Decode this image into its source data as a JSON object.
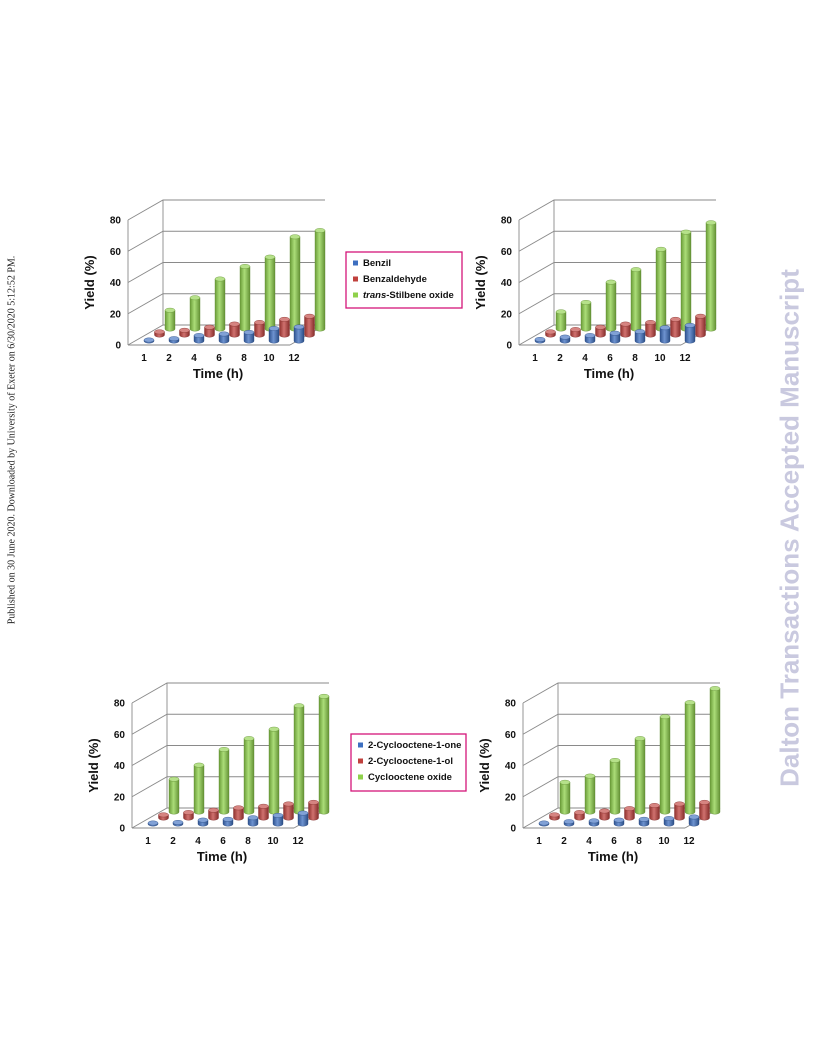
{
  "side_text": {
    "published": "Published on 30 June 2020. Downloaded by University of Exeter on 6/30/2020 5:12:52 PM.",
    "watermark": "Dalton Transactions Accepted Manuscript"
  },
  "colors": {
    "series_1": "#3d6fc0",
    "series_2": "#c0413d",
    "series_3": "#8fd14b",
    "legend_border": "#d4157a",
    "grid": "#8a8a8a"
  },
  "chart_data": [
    {
      "type": "bar",
      "style": "3d-clustered",
      "categories": [
        "1",
        "2",
        "4",
        "6",
        "8",
        "10",
        "12"
      ],
      "xlabel": "Time (h)",
      "ylabel": "Yield (%)",
      "ylim": [
        0,
        80
      ],
      "yticks": [
        "0",
        "20",
        "40",
        "60",
        "80"
      ],
      "grid": true,
      "legend": "right",
      "legend_italic_prefix": [
        "",
        "",
        "trans"
      ],
      "series": [
        {
          "name": "Benzil",
          "legend_rest": "Benzil",
          "values": [
            0.5,
            1.5,
            3.5,
            4.5,
            5.5,
            8,
            9
          ]
        },
        {
          "name": "Benzaldehyde",
          "legend_rest": "Benzaldehyde",
          "values": [
            2,
            3,
            5,
            7,
            8,
            10,
            12
          ]
        },
        {
          "name": "trans-Stilbene oxide",
          "legend_rest": "-Stilbene oxide",
          "values": [
            12,
            20,
            32,
            40,
            46,
            59,
            63
          ]
        }
      ]
    },
    {
      "type": "bar",
      "style": "3d-clustered",
      "categories": [
        "1",
        "2",
        "4",
        "6",
        "8",
        "10",
        "12"
      ],
      "xlabel": "Time (h)",
      "ylabel": "Yield (%)",
      "ylim": [
        0,
        80
      ],
      "yticks": [
        "0",
        "20",
        "40",
        "60",
        "80"
      ],
      "grid": true,
      "legend": "none",
      "series": [
        {
          "name": "Benzil",
          "values": [
            1,
            2.5,
            3.5,
            5,
            6,
            8.5,
            10
          ]
        },
        {
          "name": "Benzaldehyde",
          "values": [
            2,
            3.5,
            5,
            7,
            8,
            10,
            12
          ]
        },
        {
          "name": "trans-Stilbene oxide",
          "values": [
            11,
            17,
            30,
            38,
            51,
            62,
            68
          ]
        }
      ]
    },
    {
      "type": "bar",
      "style": "3d-clustered",
      "categories": [
        "1",
        "2",
        "4",
        "6",
        "8",
        "10",
        "12"
      ],
      "xlabel": "Time (h)",
      "ylabel": "Yield (%)",
      "ylim": [
        0,
        80
      ],
      "yticks": [
        "0",
        "20",
        "40",
        "60",
        "80"
      ],
      "grid": true,
      "legend": "right",
      "legend_italic_prefix": [
        "",
        "",
        ""
      ],
      "series": [
        {
          "name": "2-Cyclooctene-1-one",
          "legend_rest": "2-Cyclooctene-1-one",
          "values": [
            0.5,
            1,
            2.5,
            3,
            4,
            5.5,
            7
          ]
        },
        {
          "name": "2-Cyclooctene-1-ol",
          "legend_rest": "2-Cyclooctene-1-ol",
          "values": [
            2,
            3.5,
            5,
            6.5,
            7.5,
            9,
            10
          ]
        },
        {
          "name": "Cyclooctene oxide",
          "legend_rest": "Cyclooctene oxide",
          "values": [
            21,
            30,
            40,
            47,
            53,
            68,
            74
          ]
        }
      ]
    },
    {
      "type": "bar",
      "style": "3d-clustered",
      "categories": [
        "1",
        "2",
        "4",
        "6",
        "8",
        "10",
        "12"
      ],
      "xlabel": "Time (h)",
      "ylabel": "Yield (%)",
      "ylim": [
        0,
        80
      ],
      "yticks": [
        "0",
        "20",
        "40",
        "60",
        "80"
      ],
      "grid": true,
      "legend": "none",
      "series": [
        {
          "name": "2-Cyclooctene-1-one",
          "values": [
            0.5,
            1.5,
            2,
            2.5,
            3,
            3.5,
            4.5
          ]
        },
        {
          "name": "2-Cyclooctene-1-ol",
          "values": [
            2,
            3.5,
            4.5,
            6,
            8,
            9,
            10
          ]
        },
        {
          "name": "Cyclooctene oxide",
          "values": [
            19,
            23,
            33,
            47,
            61,
            70,
            79
          ]
        }
      ]
    }
  ]
}
